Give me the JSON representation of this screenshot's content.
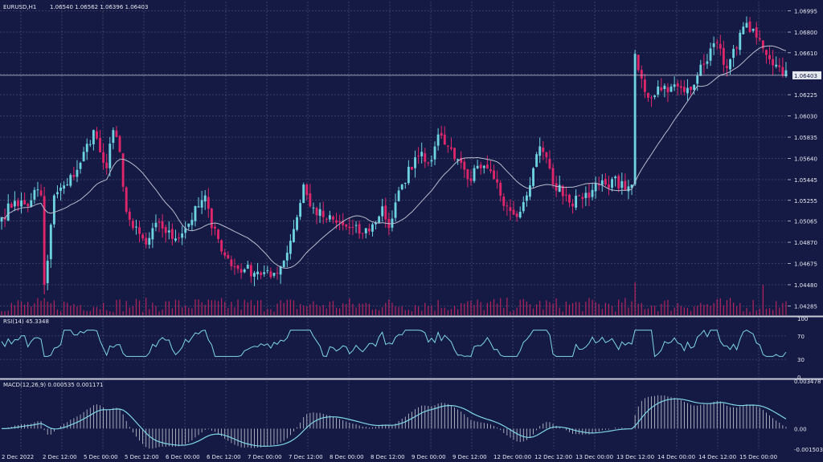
{
  "colors": {
    "background": "#141a44",
    "grid": "#5a6185",
    "separator": "#c9ccd6",
    "axis_text": "#e6e8f0",
    "bull": "#6ed3e0",
    "bear": "#e0266a",
    "ma": "#b8bccc",
    "rsi": "#7fd6e6",
    "macd_signal": "#7fd6e6",
    "macd_hist": "#c9ccd6",
    "volume": "#b3245f"
  },
  "header": {
    "symbol_label": "EURUSD,H1",
    "ohlc_text": "1.06540 1.06562 1.06396 1.06403",
    "rsi_label": "RSI(14) 45.3348",
    "macd_label": "MACD(12,26,9) 0.000535 0.001171"
  },
  "chart_data": [
    {
      "type": "candlestick",
      "name": "EURUSD,H1",
      "ylim": [
        1.042,
        1.0708
      ],
      "y_ticks": [
        "1.06995",
        "1.06800",
        "1.06610",
        "1.06415",
        "1.06225",
        "1.06030",
        "1.05835",
        "1.05640",
        "1.05445",
        "1.05255",
        "1.05065",
        "1.04870",
        "1.04675",
        "1.04480",
        "1.04285"
      ],
      "current_price": "1.06403",
      "x_ticks": [
        "2 Dec 2022",
        "2 Dec 12:00",
        "5 Dec 00:00",
        "5 Dec 12:00",
        "6 Dec 00:00",
        "6 Dec 12:00",
        "7 Dec 00:00",
        "7 Dec 12:00",
        "8 Dec 00:00",
        "8 Dec 12:00",
        "9 Dec 00:00",
        "9 Dec 12:00",
        "12 Dec 00:00",
        "12 Dec 12:00",
        "13 Dec 00:00",
        "13 Dec 12:00",
        "14 Dec 00:00",
        "14 Dec 12:00",
        "15 Dec 00:00"
      ],
      "close_anchors": [
        [
          0,
          1.051
        ],
        [
          4,
          1.0525
        ],
        [
          8,
          1.052
        ],
        [
          10,
          1.0535
        ],
        [
          12,
          1.053
        ],
        [
          13,
          1.0448
        ],
        [
          14,
          1.047
        ],
        [
          16,
          1.053
        ],
        [
          20,
          1.054
        ],
        [
          24,
          1.056
        ],
        [
          28,
          1.059
        ],
        [
          31,
          1.056
        ],
        [
          32,
          1.0555
        ],
        [
          34,
          1.059
        ],
        [
          36,
          1.057
        ],
        [
          38,
          1.0515
        ],
        [
          40,
          1.05
        ],
        [
          44,
          1.0485
        ],
        [
          48,
          1.0505
        ],
        [
          52,
          1.049
        ],
        [
          56,
          1.05
        ],
        [
          60,
          1.052
        ],
        [
          62,
          1.053
        ],
        [
          64,
          1.05
        ],
        [
          66,
          1.049
        ],
        [
          70,
          1.0465
        ],
        [
          74,
          1.0462
        ],
        [
          78,
          1.046
        ],
        [
          82,
          1.0455
        ],
        [
          86,
          1.047
        ],
        [
          90,
          1.051
        ],
        [
          92,
          1.054
        ],
        [
          94,
          1.052
        ],
        [
          98,
          1.051
        ],
        [
          102,
          1.0505
        ],
        [
          106,
          1.05
        ],
        [
          110,
          1.0495
        ],
        [
          114,
          1.0505
        ],
        [
          116,
          1.052
        ],
        [
          118,
          1.05
        ],
        [
          122,
          1.054
        ],
        [
          126,
          1.0565
        ],
        [
          128,
          1.057
        ],
        [
          130,
          1.056
        ],
        [
          132,
          1.0575
        ],
        [
          134,
          1.0585
        ],
        [
          136,
          1.0575
        ],
        [
          140,
          1.056
        ],
        [
          142,
          1.0545
        ],
        [
          146,
          1.0555
        ],
        [
          150,
          1.0545
        ],
        [
          154,
          1.052
        ],
        [
          158,
          1.0515
        ],
        [
          160,
          1.053
        ],
        [
          162,
          1.0555
        ],
        [
          164,
          1.0575
        ],
        [
          166,
          1.0565
        ],
        [
          168,
          1.054
        ],
        [
          172,
          1.053
        ],
        [
          174,
          1.052
        ],
        [
          176,
          1.053
        ],
        [
          180,
          1.0535
        ],
        [
          184,
          1.054
        ],
        [
          186,
          1.0545
        ],
        [
          190,
          1.0535
        ],
        [
          192,
          1.054
        ],
        [
          193,
          1.066
        ],
        [
          194,
          1.0645
        ],
        [
          196,
          1.0625
        ],
        [
          198,
          1.062
        ],
        [
          200,
          1.063
        ],
        [
          204,
          1.063
        ],
        [
          208,
          1.0625
        ],
        [
          212,
          1.064
        ],
        [
          214,
          1.065
        ],
        [
          216,
          1.0665
        ],
        [
          218,
          1.067
        ],
        [
          220,
          1.065
        ],
        [
          222,
          1.0655
        ],
        [
          224,
          1.0665
        ],
        [
          226,
          1.0685
        ],
        [
          228,
          1.068
        ],
        [
          230,
          1.0675
        ],
        [
          232,
          1.0665
        ],
        [
          234,
          1.0655
        ],
        [
          236,
          1.065
        ],
        [
          238,
          1.06403
        ]
      ],
      "rsi": {
        "ylim": [
          0,
          100
        ],
        "y_ticks": [
          "100",
          "70",
          "30",
          "0"
        ],
        "values_hint": "oscillating 40-75"
      },
      "macd": {
        "ylim": [
          -0.001503,
          0.003478
        ],
        "y_ticks": [
          "0.003478",
          "0.00",
          "-0.001503"
        ]
      }
    }
  ]
}
